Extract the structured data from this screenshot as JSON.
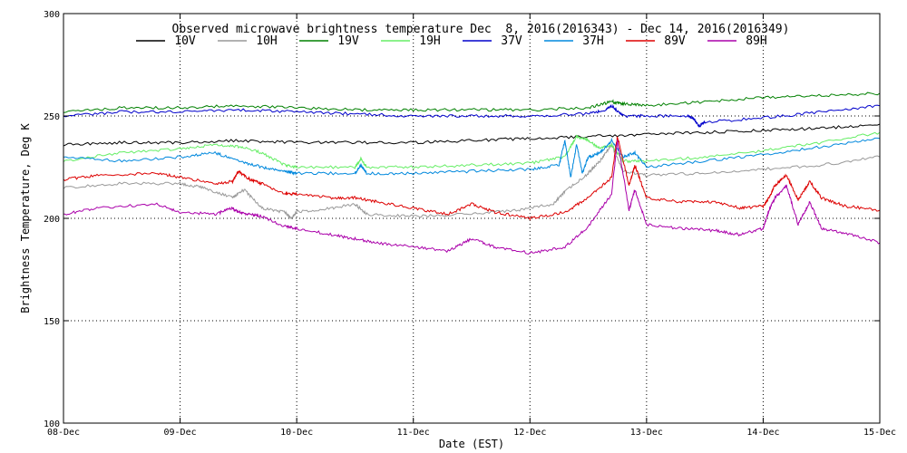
{
  "chart_data": {
    "type": "line",
    "title": "Observed microwave brightness temperature Dec  8, 2016(2016343) - Dec 14, 2016(2016349)",
    "xlabel": "Date (EST)",
    "ylabel": "Brightness Temperature, Deg K",
    "xlim": [
      0,
      7
    ],
    "ylim": [
      100,
      300
    ],
    "y_ticks": [
      100,
      150,
      200,
      250,
      300
    ],
    "x_ticks": [
      0,
      1,
      2,
      3,
      4,
      5,
      6,
      7
    ],
    "x_tick_labels": [
      "08-Dec",
      "09-Dec",
      "10-Dec",
      "11-Dec",
      "12-Dec",
      "13-Dec",
      "14-Dec",
      "15-Dec"
    ],
    "grid": "dotted",
    "legend_position": "top",
    "series": [
      {
        "name": "10V",
        "color": "#000000",
        "x": [
          0,
          0.5,
          1,
          1.5,
          2,
          2.5,
          3,
          3.5,
          4,
          4.5,
          5,
          5.5,
          6,
          6.5,
          7
        ],
        "values": [
          236,
          237,
          237,
          238,
          237,
          237,
          237,
          238,
          239,
          240,
          241,
          242,
          243,
          244,
          246
        ]
      },
      {
        "name": "10H",
        "color": "#999999",
        "x": [
          0,
          0.5,
          1,
          1.2,
          1.45,
          1.55,
          1.7,
          1.9,
          1.95,
          2,
          2.3,
          2.5,
          2.6,
          3,
          3.5,
          3.9,
          4.2,
          4.3,
          4.5,
          4.6,
          4.7,
          4.8,
          5,
          5.5,
          6,
          6.5,
          7
        ],
        "values": [
          215,
          217,
          217,
          215,
          210,
          214,
          205,
          203,
          200,
          203,
          205,
          207,
          202,
          201,
          202,
          204,
          207,
          213,
          222,
          228,
          236,
          223,
          221,
          222,
          224,
          226,
          230
        ]
      },
      {
        "name": "19V",
        "color": "#008000",
        "x": [
          0,
          0.5,
          1,
          1.5,
          2,
          2.5,
          3,
          3.5,
          4,
          4.5,
          4.7,
          4.8,
          5,
          5.5,
          6,
          6.5,
          7
        ],
        "values": [
          252,
          254,
          254,
          255,
          254,
          253,
          253,
          253,
          253,
          254,
          257,
          256,
          255,
          257,
          259,
          260,
          261
        ]
      },
      {
        "name": "19H",
        "color": "#66ee66",
        "x": [
          0,
          0.5,
          1,
          1.3,
          1.5,
          1.7,
          1.9,
          2,
          2.5,
          2.55,
          2.6,
          3,
          3.5,
          4,
          4.3,
          4.4,
          4.5,
          4.6,
          4.7,
          4.8,
          5,
          5.5,
          6,
          6.5,
          7
        ],
        "values": [
          228,
          232,
          234,
          236,
          235,
          232,
          226,
          225,
          225,
          229,
          225,
          225,
          226,
          227,
          230,
          240,
          238,
          234,
          236,
          228,
          228,
          230,
          233,
          237,
          242
        ]
      },
      {
        "name": "37V",
        "color": "#0000cc",
        "x": [
          0,
          0.5,
          1,
          1.5,
          2,
          2.5,
          3,
          3.5,
          4,
          4.5,
          4.65,
          4.7,
          4.8,
          5,
          5.35,
          5.4,
          5.45,
          5.5,
          6,
          6.5,
          7
        ],
        "values": [
          250,
          252,
          252,
          253,
          252,
          251,
          250,
          250,
          250,
          251,
          253,
          255,
          250,
          250,
          250,
          249,
          245,
          247,
          249,
          252,
          255
        ]
      },
      {
        "name": "37H",
        "color": "#0088dd",
        "x": [
          0,
          0.5,
          1,
          1.3,
          1.5,
          1.7,
          1.9,
          2,
          2.5,
          2.55,
          2.6,
          3,
          3.5,
          4,
          4.25,
          4.3,
          4.35,
          4.4,
          4.45,
          4.5,
          4.6,
          4.7,
          4.8,
          4.9,
          5,
          5.5,
          6,
          6.5,
          7
        ],
        "values": [
          230,
          228,
          230,
          232,
          228,
          225,
          223,
          222,
          222,
          226,
          222,
          222,
          223,
          224,
          226,
          238,
          220,
          236,
          222,
          230,
          232,
          238,
          230,
          232,
          225,
          228,
          231,
          235,
          239
        ]
      },
      {
        "name": "89V",
        "color": "#dd0000",
        "x": [
          0,
          0.3,
          0.8,
          1,
          1.3,
          1.45,
          1.5,
          1.6,
          1.7,
          1.9,
          2,
          2.3,
          2.5,
          2.7,
          3,
          3.3,
          3.5,
          3.7,
          4,
          4.3,
          4.5,
          4.7,
          4.75,
          4.85,
          4.9,
          5,
          5.3,
          5.6,
          5.8,
          6,
          6.05,
          6.1,
          6.2,
          6.3,
          6.4,
          6.5,
          6.7,
          7
        ],
        "values": [
          219,
          221,
          222,
          220,
          217,
          218,
          223,
          219,
          217,
          212,
          212,
          210,
          210,
          208,
          205,
          202,
          207,
          203,
          200,
          203,
          210,
          220,
          240,
          216,
          226,
          210,
          208,
          208,
          205,
          206,
          210,
          216,
          221,
          209,
          218,
          210,
          206,
          204
        ]
      },
      {
        "name": "89H",
        "color": "#aa00aa",
        "x": [
          0,
          0.3,
          0.8,
          1,
          1.3,
          1.45,
          1.5,
          1.6,
          1.7,
          1.9,
          2,
          2.3,
          2.5,
          2.7,
          3,
          3.3,
          3.5,
          3.7,
          4,
          4.3,
          4.5,
          4.7,
          4.75,
          4.85,
          4.9,
          5,
          5.3,
          5.6,
          5.8,
          6,
          6.05,
          6.1,
          6.2,
          6.3,
          6.4,
          6.5,
          6.7,
          7
        ],
        "values": [
          202,
          205,
          207,
          203,
          202,
          205,
          203,
          202,
          201,
          196,
          195,
          192,
          190,
          188,
          186,
          184,
          190,
          186,
          183,
          186,
          196,
          212,
          238,
          204,
          214,
          197,
          195,
          194,
          192,
          195,
          204,
          210,
          216,
          197,
          208,
          195,
          193,
          188
        ]
      }
    ]
  }
}
